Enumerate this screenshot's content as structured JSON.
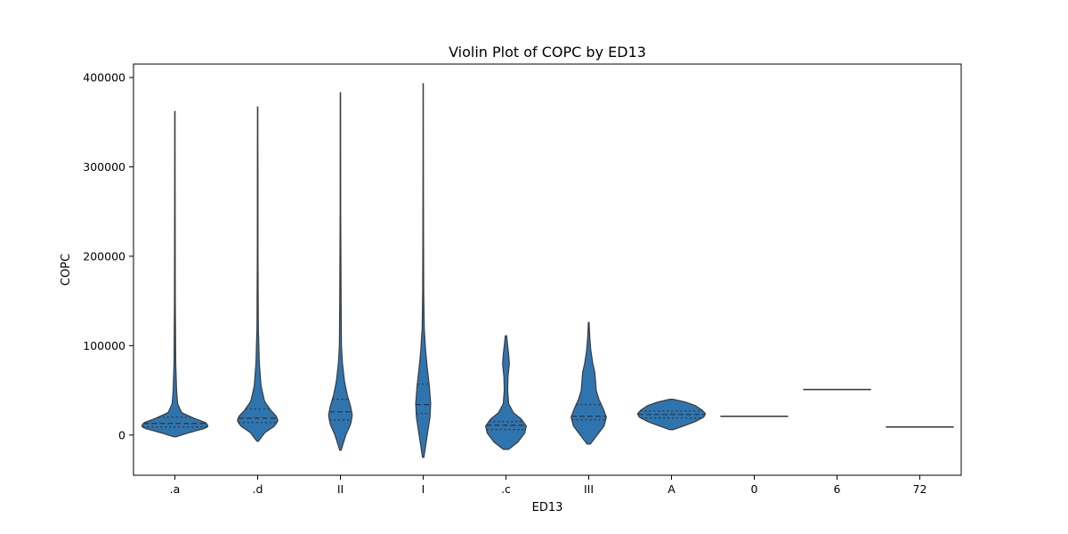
{
  "chart_data": {
    "type": "violin",
    "title": "Violin Plot of COPC by ED13",
    "xlabel": "ED13",
    "ylabel": "COPC",
    "ylim": [
      -45000,
      415000
    ],
    "yticks": [
      0,
      100000,
      200000,
      300000,
      400000
    ],
    "ytick_labels": [
      "0",
      "100000",
      "200000",
      "300000",
      "400000"
    ],
    "categories": [
      ".a",
      ".d",
      "II",
      "I",
      ".c",
      "III",
      "A",
      "0",
      "6",
      "72"
    ],
    "color": "#2e75b0",
    "series": [
      {
        "category": ".a",
        "min": -2000,
        "q1": 9000,
        "median": 13000,
        "q3": 20000,
        "max": 362000,
        "profile": [
          [
            -2000,
            0.03
          ],
          [
            3000,
            0.45
          ],
          [
            7000,
            0.85
          ],
          [
            10000,
            1.0
          ],
          [
            14000,
            0.9
          ],
          [
            19000,
            0.55
          ],
          [
            25000,
            0.2
          ],
          [
            35000,
            0.08
          ],
          [
            50000,
            0.05
          ],
          [
            80000,
            0.025
          ],
          [
            150000,
            0.012
          ],
          [
            250000,
            0.008
          ],
          [
            362000,
            0.005
          ]
        ]
      },
      {
        "category": ".d",
        "min": -7000,
        "q1": 14000,
        "median": 19000,
        "q3": 29000,
        "max": 367000,
        "profile": [
          [
            -7000,
            0.02
          ],
          [
            3000,
            0.22
          ],
          [
            10000,
            0.5
          ],
          [
            16000,
            0.6
          ],
          [
            21000,
            0.55
          ],
          [
            28000,
            0.38
          ],
          [
            38000,
            0.2
          ],
          [
            55000,
            0.1
          ],
          [
            80000,
            0.05
          ],
          [
            120000,
            0.02
          ],
          [
            200000,
            0.01
          ],
          [
            300000,
            0.008
          ],
          [
            367000,
            0.005
          ]
        ]
      },
      {
        "category": "II",
        "min": -17000,
        "q1": 17000,
        "median": 26000,
        "q3": 40000,
        "max": 383000,
        "profile": [
          [
            -17000,
            0.02
          ],
          [
            0,
            0.16
          ],
          [
            12000,
            0.3
          ],
          [
            22000,
            0.35
          ],
          [
            32000,
            0.3
          ],
          [
            45000,
            0.2
          ],
          [
            60000,
            0.12
          ],
          [
            80000,
            0.06
          ],
          [
            100000,
            0.03
          ],
          [
            150000,
            0.02
          ],
          [
            190000,
            0.015
          ],
          [
            250000,
            0.008
          ],
          [
            383000,
            0.005
          ]
        ]
      },
      {
        "category": "I",
        "min": -25000,
        "q1": 24000,
        "median": 34000,
        "q3": 57000,
        "max": 393000,
        "profile": [
          [
            -25000,
            0.02
          ],
          [
            0,
            0.12
          ],
          [
            20000,
            0.2
          ],
          [
            35000,
            0.22
          ],
          [
            55000,
            0.18
          ],
          [
            75000,
            0.12
          ],
          [
            95000,
            0.07
          ],
          [
            120000,
            0.03
          ],
          [
            160000,
            0.015
          ],
          [
            220000,
            0.01
          ],
          [
            300000,
            0.006
          ],
          [
            393000,
            0.004
          ]
        ]
      },
      {
        "category": ".c",
        "min": -16000,
        "q1": 6000,
        "median": 11000,
        "q3": 15000,
        "max": 111000,
        "profile": [
          [
            -16000,
            0.08
          ],
          [
            -8000,
            0.35
          ],
          [
            2000,
            0.55
          ],
          [
            10000,
            0.6
          ],
          [
            18000,
            0.45
          ],
          [
            25000,
            0.22
          ],
          [
            35000,
            0.08
          ],
          [
            50000,
            0.05
          ],
          [
            65000,
            0.06
          ],
          [
            80000,
            0.1
          ],
          [
            90000,
            0.08
          ],
          [
            100000,
            0.05
          ],
          [
            111000,
            0.02
          ]
        ]
      },
      {
        "category": "III",
        "min": -10000,
        "q1": 17000,
        "median": 21000,
        "q3": 34000,
        "max": 126000,
        "profile": [
          [
            -10000,
            0.05
          ],
          [
            0,
            0.25
          ],
          [
            10000,
            0.45
          ],
          [
            20000,
            0.52
          ],
          [
            30000,
            0.42
          ],
          [
            40000,
            0.3
          ],
          [
            50000,
            0.22
          ],
          [
            60000,
            0.2
          ],
          [
            70000,
            0.18
          ],
          [
            80000,
            0.12
          ],
          [
            95000,
            0.06
          ],
          [
            110000,
            0.03
          ],
          [
            126000,
            0.01
          ]
        ]
      },
      {
        "category": "A",
        "min": 6000,
        "q1": 19000,
        "median": 23000,
        "q3": 27000,
        "max": 40000,
        "profile": [
          [
            6000,
            0.05
          ],
          [
            10000,
            0.35
          ],
          [
            15000,
            0.7
          ],
          [
            20000,
            0.95
          ],
          [
            24000,
            1.0
          ],
          [
            28000,
            0.9
          ],
          [
            33000,
            0.7
          ],
          [
            37000,
            0.4
          ],
          [
            40000,
            0.05
          ]
        ]
      },
      {
        "category": "0",
        "value": 21000
      },
      {
        "category": "6",
        "value": 51000
      },
      {
        "category": "72",
        "value": 9000
      }
    ]
  }
}
